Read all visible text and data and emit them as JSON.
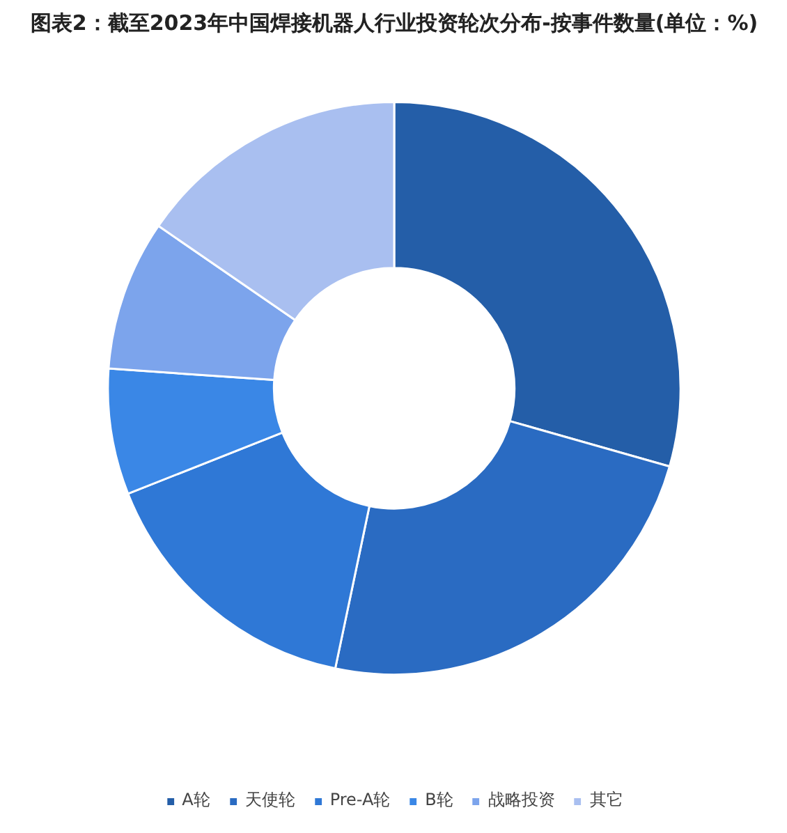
{
  "chart_data": {
    "type": "donut",
    "title": "图表2：截至2023年中国焊接机器人行业投资轮次分布-按事件数量(单位：%)",
    "categories": [
      "A轮",
      "天使轮",
      "Pre-A轮",
      "B轮",
      "战略投资",
      "其它"
    ],
    "values": [
      29.4,
      23.9,
      15.7,
      7.1,
      8.5,
      15.4
    ],
    "colors": [
      "#245ea8",
      "#2a6bc2",
      "#2f78d6",
      "#3a87e6",
      "#7ca4ec",
      "#a9bff0"
    ],
    "legend": "bottom"
  }
}
